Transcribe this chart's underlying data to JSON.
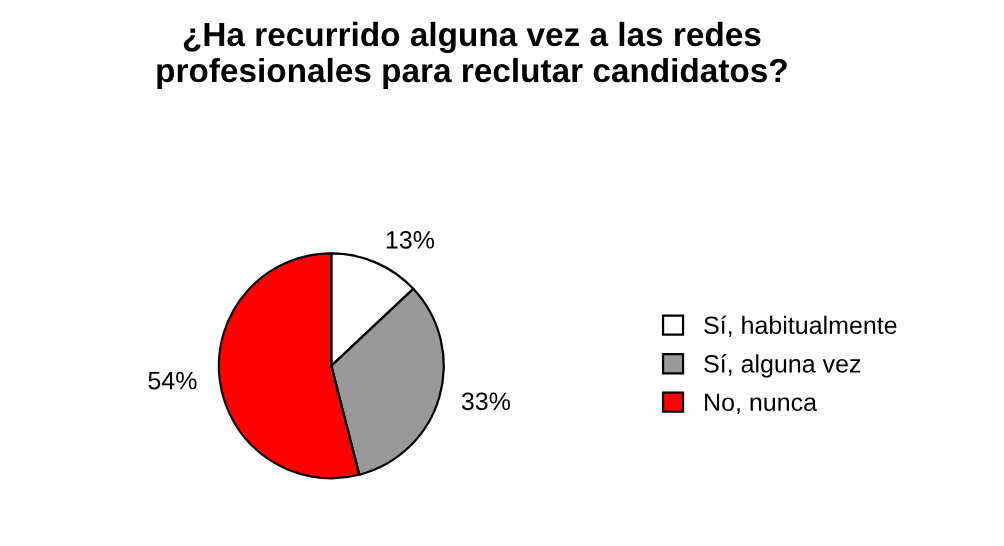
{
  "chart_data": {
    "type": "pie",
    "title": "¿Ha recurrido alguna vez a las redes\nprofesionales para reclutar candidatos?",
    "categories": [
      "Sí, habitualmente",
      "Sí, alguna vez",
      "No, nunca"
    ],
    "values": [
      13,
      33,
      54
    ],
    "colors": [
      "#ffffff",
      "#999999",
      "#ff0000"
    ],
    "value_labels": [
      "13%",
      "33%",
      "54%"
    ],
    "legend": "right"
  }
}
